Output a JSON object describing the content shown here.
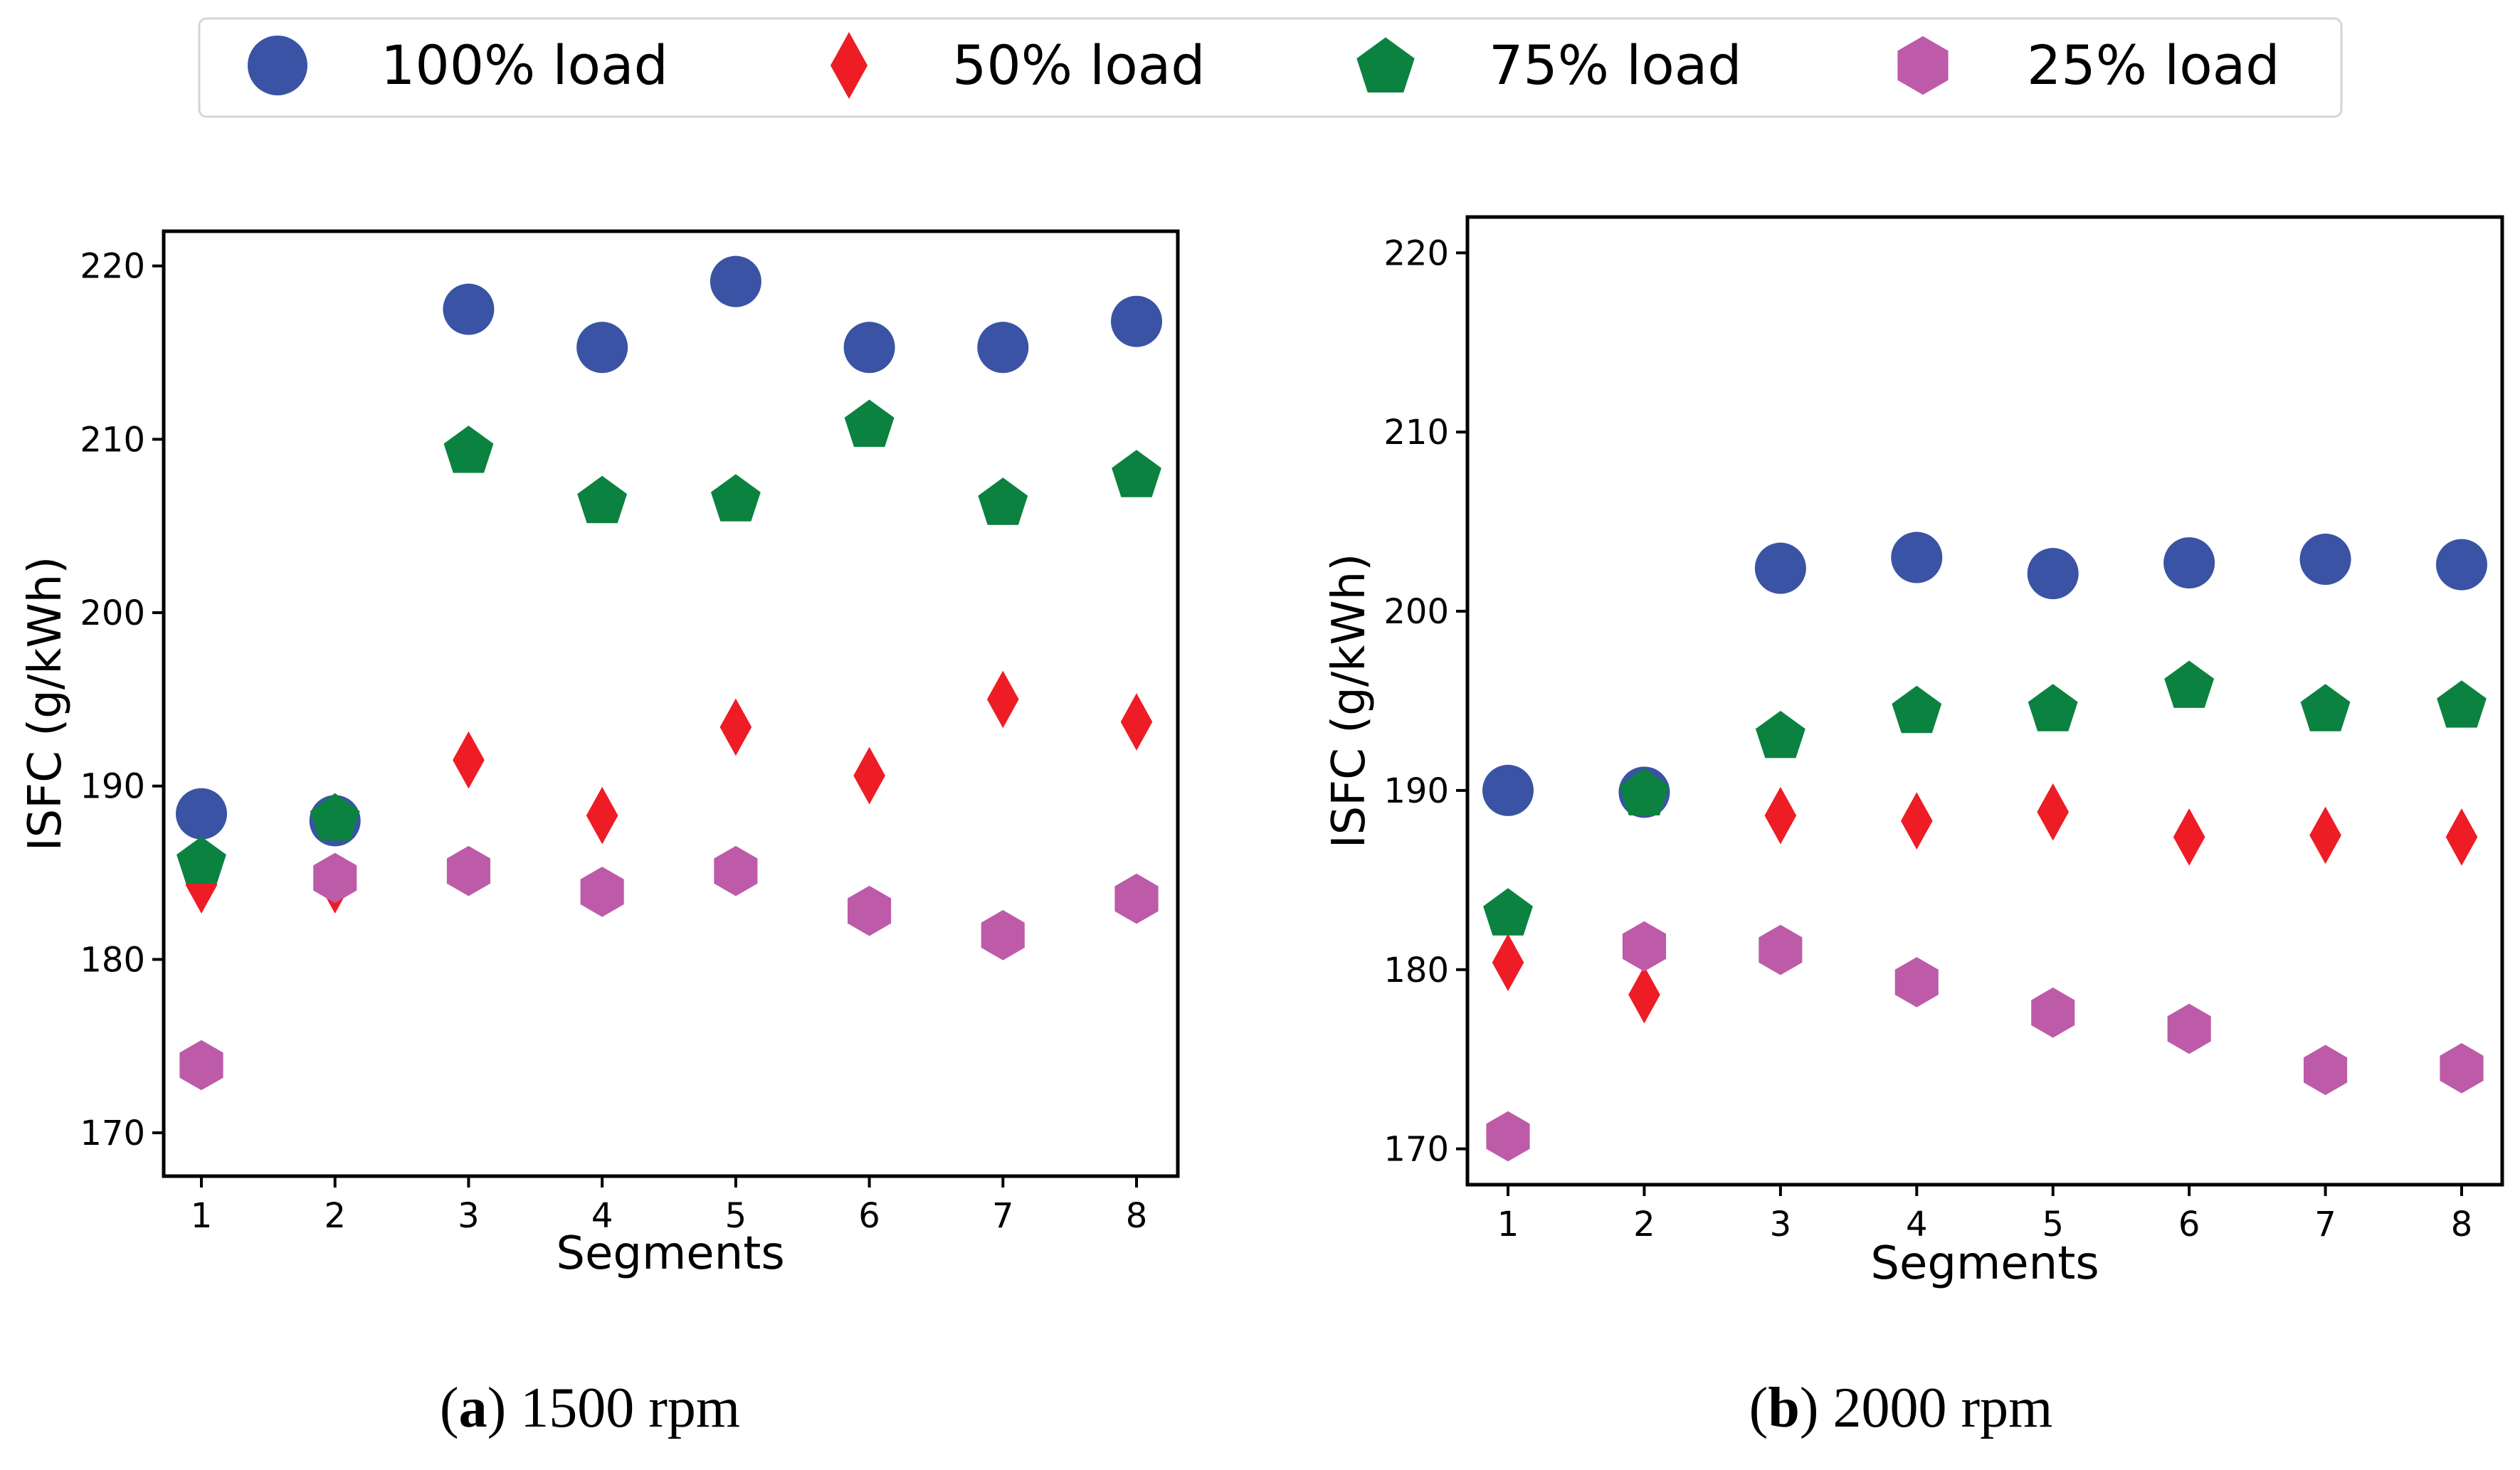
{
  "legend": {
    "items": [
      {
        "label": "100% load",
        "series": 0
      },
      {
        "label": "50% load",
        "series": 1
      },
      {
        "label": "75% load",
        "series": 2
      },
      {
        "label": "25% load",
        "series": 3
      }
    ]
  },
  "colors": {
    "load_100": "#3a53a4",
    "load_50": "#ee1c25",
    "load_75": "#0b8240",
    "load_25": "#bd5ba9"
  },
  "chart_data": [
    {
      "type": "scatter",
      "caption_prefix": "(",
      "caption_letter": "a",
      "caption_rest": ") 1500 rpm",
      "xlabel": "Segments",
      "ylabel": "ISFC (g/kWh)",
      "x": [
        1,
        2,
        3,
        4,
        5,
        6,
        7,
        8
      ],
      "ylim": [
        167.5,
        222
      ],
      "yticks": [
        170,
        180,
        190,
        200,
        210,
        220
      ],
      "series": [
        {
          "name": "100% load",
          "marker": "circle",
          "color": "#3a53a4",
          "values": [
            188.4,
            188.0,
            217.5,
            215.3,
            219.1,
            215.3,
            215.3,
            216.8
          ]
        },
        {
          "name": "50% load",
          "marker": "diamond",
          "color": "#ee1c25",
          "values": [
            184.3,
            184.3,
            191.5,
            188.3,
            193.4,
            190.6,
            195.0,
            193.7
          ]
        },
        {
          "name": "75% load",
          "marker": "pentagon",
          "color": "#0b8240",
          "values": [
            185.7,
            188.2,
            209.4,
            206.5,
            206.6,
            210.9,
            206.4,
            208.0
          ]
        },
        {
          "name": "25% load",
          "marker": "hexagon",
          "color": "#bd5ba9",
          "values": [
            173.9,
            184.7,
            185.1,
            183.9,
            185.1,
            182.8,
            181.4,
            183.5
          ]
        }
      ]
    },
    {
      "type": "scatter",
      "caption_prefix": "(",
      "caption_letter": "b",
      "caption_rest": ") 2000 rpm",
      "xlabel": "Segments",
      "ylabel": "ISFC (g/kWh)",
      "x": [
        1,
        2,
        3,
        4,
        5,
        6,
        7,
        8
      ],
      "ylim": [
        168,
        222
      ],
      "yticks": [
        170,
        180,
        190,
        200,
        210,
        220
      ],
      "series": [
        {
          "name": "100% load",
          "marker": "circle",
          "color": "#3a53a4",
          "values": [
            190.0,
            189.9,
            202.4,
            203.0,
            202.1,
            202.7,
            202.9,
            202.6
          ]
        },
        {
          "name": "50% load",
          "marker": "diamond",
          "color": "#ee1c25",
          "values": [
            180.4,
            178.6,
            188.6,
            188.3,
            188.8,
            187.4,
            187.5,
            187.4
          ]
        },
        {
          "name": "75% load",
          "marker": "pentagon",
          "color": "#0b8240",
          "values": [
            183.2,
            189.9,
            193.1,
            194.5,
            194.6,
            195.9,
            194.6,
            194.8
          ]
        },
        {
          "name": "25% load",
          "marker": "hexagon",
          "color": "#bd5ba9",
          "values": [
            170.7,
            181.3,
            181.1,
            179.3,
            177.6,
            176.7,
            174.4,
            174.5
          ]
        }
      ]
    }
  ]
}
